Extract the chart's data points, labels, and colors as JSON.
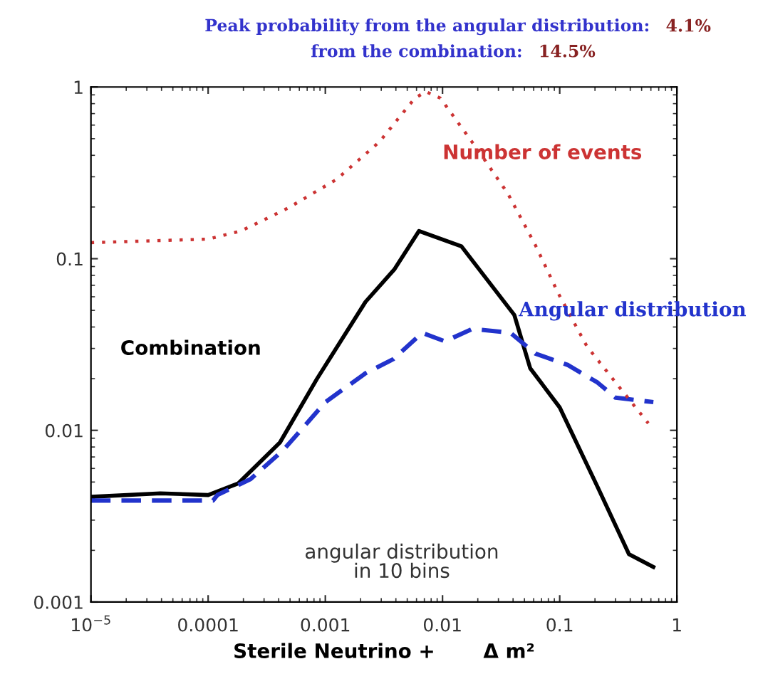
{
  "chart_data": {
    "type": "line",
    "title": "Peak probability from the angular distribution:",
    "subtitle": "from the combination:",
    "xlabel": "Sterile Neutrino +       Δ m²",
    "log": "xy",
    "xlim": [
      1e-05,
      1
    ],
    "ylim": [
      0.001,
      1
    ],
    "xticks": [
      {
        "value": 1e-05,
        "label": "10$^{−5}$"
      },
      0.0001,
      0.001,
      0.01,
      0.1,
      1
    ],
    "yticks": [
      0.001,
      0.01,
      0.1,
      1
    ],
    "grid": false,
    "legend": false,
    "marker": "none",
    "annotations": [
      "4.1%",
      "14.5%",
      "angular distribution\nin 10 bins"
    ],
    "series": [
      {
        "name": "Combination",
        "color": "#000000",
        "line_style": "solid",
        "x": [
          1e-05,
          3.9e-05,
          0.0001,
          0.00018,
          0.00041,
          0.00085,
          0.0022,
          0.0039,
          0.0063,
          0.0145,
          0.041,
          0.056,
          0.1,
          0.21,
          0.39,
          0.63
        ],
        "values": [
          0.0041,
          0.0043,
          0.0042,
          0.0049,
          0.0085,
          0.02,
          0.056,
          0.087,
          0.145,
          0.118,
          0.047,
          0.023,
          0.0136,
          0.0047,
          0.0019,
          0.0016
        ]
      },
      {
        "name": "Angular distribution",
        "color": "#2233cc",
        "line_style": "dashed",
        "x": [
          1e-05,
          0.00011,
          0.00012,
          0.00023,
          0.00044,
          0.001,
          0.0022,
          0.0038,
          0.0067,
          0.0105,
          0.018,
          0.038,
          0.062,
          0.118,
          0.21,
          0.3,
          0.63
        ],
        "values": [
          0.0039,
          0.0039,
          0.0042,
          0.0052,
          0.0077,
          0.0146,
          0.0215,
          0.026,
          0.037,
          0.033,
          0.039,
          0.037,
          0.028,
          0.024,
          0.019,
          0.0155,
          0.0146
        ]
      },
      {
        "name": "Number of events",
        "color": "#cc3333",
        "line_style": "dotted",
        "x": [
          1e-05,
          0.0001,
          0.00019,
          0.00048,
          0.00125,
          0.0029,
          0.0058,
          0.0072,
          0.0096,
          0.0205,
          0.036,
          0.062,
          0.097,
          0.17,
          0.3,
          0.57
        ],
        "values": [
          0.124,
          0.13,
          0.145,
          0.197,
          0.29,
          0.48,
          0.86,
          0.94,
          0.86,
          0.42,
          0.24,
          0.12,
          0.063,
          0.031,
          0.019,
          0.011
        ]
      }
    ]
  }
}
